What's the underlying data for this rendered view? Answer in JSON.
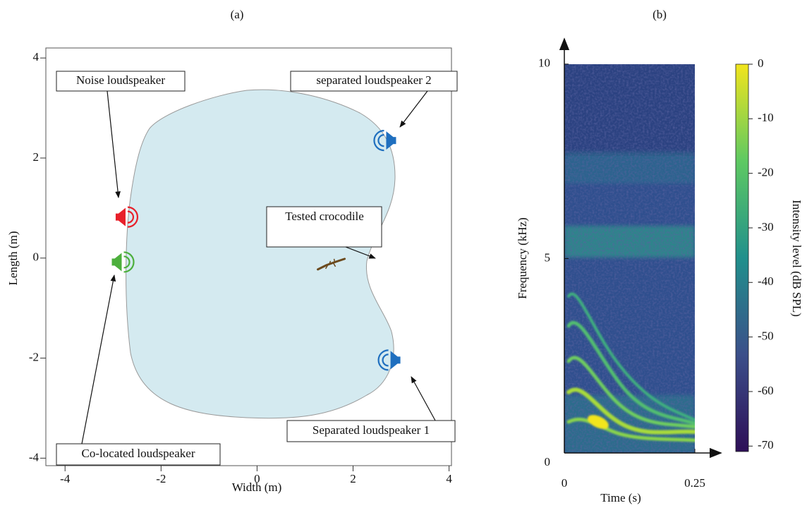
{
  "chart_data": [
    {
      "type": "scatter",
      "title": "(a)",
      "x_label": "Width (m)",
      "y_label": "Length (m)",
      "xlim": [
        -4.4,
        4.05
      ],
      "ylim": [
        -4.15,
        4.2
      ],
      "xticks": [
        -4,
        -2,
        0,
        2,
        4
      ],
      "yticks": [
        -4,
        -2,
        0,
        2,
        4
      ],
      "points": [
        {
          "label": "Noise loudspeaker",
          "x": -2.74,
          "y": 0.82,
          "color": "#e8202a"
        },
        {
          "label": "Co-located loudspeaker",
          "x": -2.82,
          "y": -0.08,
          "color": "#4caf3c"
        },
        {
          "label": "separated loudspeaker 2",
          "x": 2.69,
          "y": 2.35,
          "color": "#1f6fbf"
        },
        {
          "label": "Separated loudspeaker 1",
          "x": 2.78,
          "y": -2.04,
          "color": "#1f6fbf"
        },
        {
          "label": "Tested crocodile",
          "x": 1.56,
          "y": -0.1,
          "color": "#6b4a1e"
        }
      ]
    },
    {
      "type": "spectrogram",
      "title": "(b)",
      "x_label": "Time (s)",
      "y_label": "Frequency (kHz)",
      "xlim": [
        0,
        0.3
      ],
      "ylim": [
        0,
        10.65
      ],
      "xticks": [
        0,
        0.25
      ],
      "yticks": [
        0,
        5,
        10
      ],
      "colorbar": {
        "label": "Intensity level (dB SPL)",
        "lim": [
          -71,
          0
        ],
        "ticks": [
          0,
          -10,
          -20,
          -30,
          -40,
          -50,
          -60,
          -70
        ],
        "colors": [
          "#2e0f57",
          "#3b4f8a",
          "#21908c",
          "#5ec962",
          "#f2e51d"
        ]
      }
    }
  ]
}
